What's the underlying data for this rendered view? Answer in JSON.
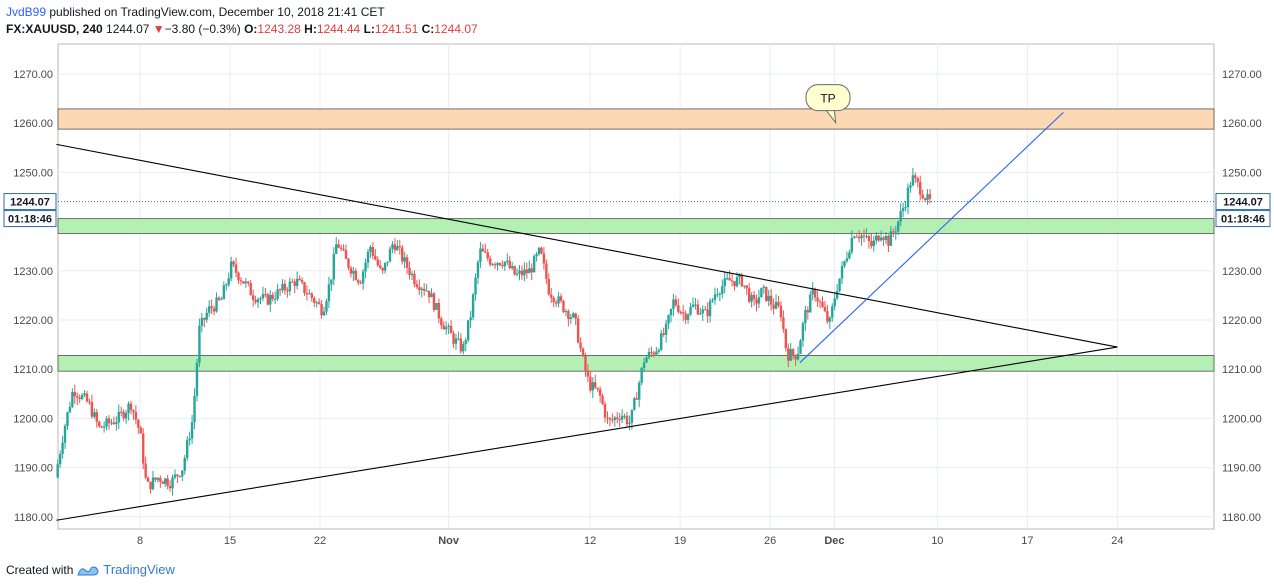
{
  "header": {
    "author": "JvdB99",
    "published_text": "published on TradingView.com, December 10, 2018 21:41 CET",
    "symbol": "FX:XAUUSD, 240",
    "last": "1244.07",
    "change_arrow": "▼",
    "change": "−3.80 (−0.3%)",
    "open_label": "O:",
    "open": "1243.28",
    "high_label": "H:",
    "high": "1244.44",
    "low_label": "L:",
    "low": "1241.51",
    "close_label": "C:",
    "close": "1244.07"
  },
  "footer": {
    "created_with": "Created with",
    "brand": "TradingView"
  },
  "chart_data": {
    "type": "candlestick",
    "instrument": "FX:XAUUSD",
    "interval": "240",
    "ylim": [
      1178,
      1274
    ],
    "y_ticks": [
      1180,
      1190,
      1200,
      1210,
      1220,
      1230,
      1240,
      1250,
      1260,
      1270
    ],
    "y_tick_labels": [
      "1180.00",
      "1190.00",
      "1200.00",
      "1210.00",
      "1220.00",
      "1230.00",
      "1240.00",
      "1250.00",
      "1260.00",
      "1270.00"
    ],
    "x_range_days": [
      -4.3,
      31.4
    ],
    "x_ticks": [
      {
        "day": 8,
        "label": "8"
      },
      {
        "day": 15,
        "label": "15"
      },
      {
        "day": 22,
        "label": "22"
      },
      {
        "day": 32,
        "label": "Nov"
      },
      {
        "day": 43,
        "label": "12"
      },
      {
        "day": 50,
        "label": "19"
      },
      {
        "day": 57,
        "label": "26"
      },
      {
        "day": 62,
        "label": "Dec"
      },
      {
        "day": 70,
        "label": "10"
      },
      {
        "day": 77,
        "label": "17"
      },
      {
        "day": 84,
        "label": "24"
      }
    ],
    "grid": true,
    "colors": {
      "up": "#26a69a",
      "down": "#ef5350",
      "zone_support": "#b4f0b4",
      "zone_resistance": "#fdd8b5",
      "trendline": "#000000",
      "channel": "#2962ff"
    },
    "last_price": {
      "value": 1244.07,
      "label": "1244.07",
      "countdown": "01:18:46"
    },
    "zones": [
      {
        "name": "resistance-zone",
        "from": 1258.8,
        "to": 1262.9,
        "color": "#fdd8b5"
      },
      {
        "name": "support-zone-upper",
        "from": 1237.6,
        "to": 1240.6,
        "color": "#b4f0b4"
      },
      {
        "name": "support-zone-lower",
        "from": 1209.6,
        "to": 1212.8,
        "color": "#b4f0b4"
      }
    ],
    "trendlines": [
      {
        "name": "descending-trendline",
        "from": [
          1.5,
          1255.7
        ],
        "to": [
          84.0,
          1214.5
        ],
        "color": "#000000"
      },
      {
        "name": "ascending-trendline",
        "from": [
          1.5,
          1179.3
        ],
        "to": [
          84.0,
          1214.5
        ],
        "color": "#000000"
      },
      {
        "name": "blue-uptrend-line",
        "from": [
          59.3,
          1211.3
        ],
        "to": [
          79.8,
          1262.2
        ],
        "color": "#2962ff"
      }
    ],
    "annotation": {
      "text": "TP",
      "x": 61.5,
      "y": 1265.2,
      "pointer": [
        62.1,
        1260.1
      ]
    },
    "anchors": [
      {
        "day": 1.6,
        "price": 1188
      },
      {
        "day": 2.3,
        "price": 1198
      },
      {
        "day": 3.0,
        "price": 1206
      },
      {
        "day": 4.2,
        "price": 1203
      },
      {
        "day": 5.0,
        "price": 1198
      },
      {
        "day": 6.5,
        "price": 1200
      },
      {
        "day": 7.5,
        "price": 1203
      },
      {
        "day": 8.2,
        "price": 1197
      },
      {
        "day": 8.7,
        "price": 1186
      },
      {
        "day": 9.6,
        "price": 1188
      },
      {
        "day": 10.6,
        "price": 1187
      },
      {
        "day": 11.5,
        "price": 1190
      },
      {
        "day": 12.3,
        "price": 1200
      },
      {
        "day": 12.8,
        "price": 1218
      },
      {
        "day": 13.5,
        "price": 1222
      },
      {
        "day": 14.5,
        "price": 1224
      },
      {
        "day": 15.3,
        "price": 1231
      },
      {
        "day": 16.2,
        "price": 1228
      },
      {
        "day": 17.0,
        "price": 1225
      },
      {
        "day": 18.0,
        "price": 1224
      },
      {
        "day": 19.2,
        "price": 1226
      },
      {
        "day": 20.3,
        "price": 1228
      },
      {
        "day": 21.4,
        "price": 1225
      },
      {
        "day": 22.4,
        "price": 1222
      },
      {
        "day": 23.0,
        "price": 1228
      },
      {
        "day": 23.5,
        "price": 1236
      },
      {
        "day": 24.2,
        "price": 1232
      },
      {
        "day": 25.3,
        "price": 1228
      },
      {
        "day": 26.1,
        "price": 1235
      },
      {
        "day": 27.0,
        "price": 1229
      },
      {
        "day": 27.9,
        "price": 1236
      },
      {
        "day": 28.7,
        "price": 1232
      },
      {
        "day": 29.6,
        "price": 1228
      },
      {
        "day": 30.6,
        "price": 1226
      },
      {
        "day": 31.6,
        "price": 1220
      },
      {
        "day": 32.6,
        "price": 1216
      },
      {
        "day": 33.3,
        "price": 1214
      },
      {
        "day": 33.9,
        "price": 1221
      },
      {
        "day": 34.6,
        "price": 1234
      },
      {
        "day": 35.5,
        "price": 1232
      },
      {
        "day": 36.5,
        "price": 1232
      },
      {
        "day": 37.4,
        "price": 1229
      },
      {
        "day": 38.5,
        "price": 1230
      },
      {
        "day": 39.3,
        "price": 1234
      },
      {
        "day": 40.0,
        "price": 1226
      },
      {
        "day": 41.0,
        "price": 1223
      },
      {
        "day": 42.0,
        "price": 1220
      },
      {
        "day": 42.6,
        "price": 1212
      },
      {
        "day": 43.1,
        "price": 1207
      },
      {
        "day": 43.9,
        "price": 1205
      },
      {
        "day": 44.6,
        "price": 1199
      },
      {
        "day": 45.6,
        "price": 1201
      },
      {
        "day": 46.3,
        "price": 1199
      },
      {
        "day": 46.9,
        "price": 1206
      },
      {
        "day": 47.4,
        "price": 1212
      },
      {
        "day": 48.3,
        "price": 1214
      },
      {
        "day": 49.1,
        "price": 1218
      },
      {
        "day": 49.7,
        "price": 1224
      },
      {
        "day": 50.5,
        "price": 1221
      },
      {
        "day": 51.3,
        "price": 1223
      },
      {
        "day": 52.2,
        "price": 1221
      },
      {
        "day": 53.0,
        "price": 1226
      },
      {
        "day": 54.0,
        "price": 1228
      },
      {
        "day": 55.0,
        "price": 1228
      },
      {
        "day": 55.9,
        "price": 1223
      },
      {
        "day": 56.6,
        "price": 1226
      },
      {
        "day": 57.4,
        "price": 1223
      },
      {
        "day": 58.0,
        "price": 1222
      },
      {
        "day": 58.5,
        "price": 1213
      },
      {
        "day": 59.3,
        "price": 1213
      },
      {
        "day": 59.9,
        "price": 1221
      },
      {
        "day": 60.6,
        "price": 1226
      },
      {
        "day": 61.3,
        "price": 1222
      },
      {
        "day": 61.8,
        "price": 1219
      },
      {
        "day": 62.3,
        "price": 1226
      },
      {
        "day": 63.0,
        "price": 1232
      },
      {
        "day": 63.7,
        "price": 1238
      },
      {
        "day": 64.4,
        "price": 1237
      },
      {
        "day": 65.1,
        "price": 1235
      },
      {
        "day": 65.8,
        "price": 1238
      },
      {
        "day": 66.4,
        "price": 1236
      },
      {
        "day": 67.0,
        "price": 1239
      },
      {
        "day": 67.7,
        "price": 1244
      },
      {
        "day": 68.2,
        "price": 1249
      },
      {
        "day": 68.8,
        "price": 1247
      },
      {
        "day": 69.5,
        "price": 1244
      }
    ]
  }
}
